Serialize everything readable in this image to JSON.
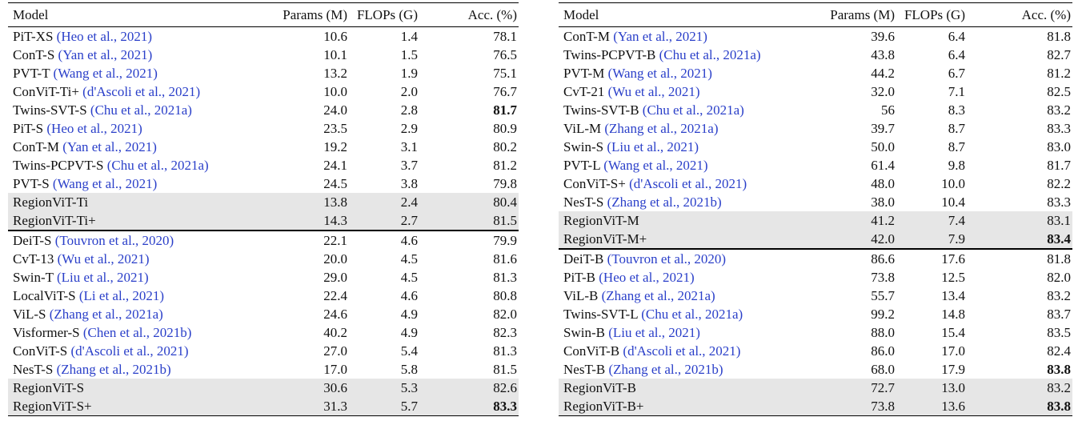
{
  "tables": [
    {
      "header": [
        "Model",
        "Params (M)",
        "FLOPs (G)",
        "Acc. (%)"
      ],
      "groups": [
        {
          "baselines": [
            {
              "model": "PiT-XS",
              "cite": "(Heo et al., 2021)",
              "params": "10.6",
              "flops": "1.4",
              "acc": "78.1"
            },
            {
              "model": "ConT-S",
              "cite": "(Yan et al., 2021)",
              "params": "10.1",
              "flops": "1.5",
              "acc": "76.5"
            },
            {
              "model": "PVT-T",
              "cite": "(Wang et al., 2021)",
              "params": "13.2",
              "flops": "1.9",
              "acc": "75.1"
            },
            {
              "model": "ConViT-Ti+",
              "cite": "(d'Ascoli et al., 2021)",
              "params": "10.0",
              "flops": "2.0",
              "acc": "76.7"
            },
            {
              "model": "Twins-SVT-S",
              "cite": "(Chu et al., 2021a)",
              "params": "24.0",
              "flops": "2.8",
              "acc": "81.7",
              "bold": true
            },
            {
              "model": "PiT-S",
              "cite": "(Heo et al., 2021)",
              "params": "23.5",
              "flops": "2.9",
              "acc": "80.9"
            },
            {
              "model": "ConT-M",
              "cite": "(Yan et al., 2021)",
              "params": "19.2",
              "flops": "3.1",
              "acc": "80.2"
            },
            {
              "model": "Twins-PCPVT-S",
              "cite": "(Chu et al., 2021a)",
              "params": "24.1",
              "flops": "3.7",
              "acc": "81.2"
            },
            {
              "model": "PVT-S",
              "cite": "(Wang et al., 2021)",
              "params": "24.5",
              "flops": "3.8",
              "acc": "79.8"
            }
          ],
          "ours": [
            {
              "model": "RegionViT-Ti",
              "params": "13.8",
              "flops": "2.4",
              "acc": "80.4"
            },
            {
              "model": "RegionViT-Ti+",
              "params": "14.3",
              "flops": "2.7",
              "acc": "81.5"
            }
          ]
        },
        {
          "baselines": [
            {
              "model": "DeiT-S",
              "cite": "(Touvron et al., 2020)",
              "params": "22.1",
              "flops": "4.6",
              "acc": "79.9"
            },
            {
              "model": "CvT-13",
              "cite": "(Wu et al., 2021)",
              "params": "20.0",
              "flops": "4.5",
              "acc": "81.6"
            },
            {
              "model": "Swin-T",
              "cite": "(Liu et al., 2021)",
              "params": "29.0",
              "flops": "4.5",
              "acc": "81.3"
            },
            {
              "model": "LocalViT-S",
              "cite": "(Li et al., 2021)",
              "params": "22.4",
              "flops": "4.6",
              "acc": "80.8"
            },
            {
              "model": "ViL-S",
              "cite": "(Zhang et al., 2021a)",
              "params": "24.6",
              "flops": "4.9",
              "acc": "82.0"
            },
            {
              "model": "Visformer-S",
              "cite": "(Chen et al., 2021b)",
              "params": "40.2",
              "flops": "4.9",
              "acc": "82.3"
            },
            {
              "model": "ConViT-S",
              "cite": "(d'Ascoli et al., 2021)",
              "params": "27.0",
              "flops": "5.4",
              "acc": "81.3"
            },
            {
              "model": "NesT-S",
              "cite": "(Zhang et al., 2021b)",
              "params": "17.0",
              "flops": "5.8",
              "acc": "81.5"
            }
          ],
          "ours": [
            {
              "model": "RegionViT-S",
              "params": "30.6",
              "flops": "5.3",
              "acc": "82.6"
            },
            {
              "model": "RegionViT-S+",
              "params": "31.3",
              "flops": "5.7",
              "acc": "83.3",
              "bold": true
            }
          ]
        }
      ]
    },
    {
      "header": [
        "Model",
        "Params (M)",
        "FLOPs (G)",
        "Acc. (%)"
      ],
      "groups": [
        {
          "baselines": [
            {
              "model": "ConT-M",
              "cite": "(Yan et al., 2021)",
              "params": "39.6",
              "flops": "6.4",
              "acc": "81.8"
            },
            {
              "model": "Twins-PCPVT-B",
              "cite": "(Chu et al., 2021a)",
              "params": "43.8",
              "flops": "6.4",
              "acc": "82.7"
            },
            {
              "model": "PVT-M",
              "cite": "(Wang et al., 2021)",
              "params": "44.2",
              "flops": "6.7",
              "acc": "81.2"
            },
            {
              "model": "CvT-21",
              "cite": "(Wu et al., 2021)",
              "params": "32.0",
              "flops": "7.1",
              "acc": "82.5"
            },
            {
              "model": "Twins-SVT-B",
              "cite": "(Chu et al., 2021a)",
              "params": "56",
              "flops": "8.3",
              "acc": "83.2"
            },
            {
              "model": "ViL-M",
              "cite": "(Zhang et al., 2021a)",
              "params": "39.7",
              "flops": "8.7",
              "acc": "83.3"
            },
            {
              "model": "Swin-S",
              "cite": "(Liu et al., 2021)",
              "params": "50.0",
              "flops": "8.7",
              "acc": "83.0"
            },
            {
              "model": "PVT-L",
              "cite": "(Wang et al., 2021)",
              "params": "61.4",
              "flops": "9.8",
              "acc": "81.7"
            },
            {
              "model": "ConViT-S+",
              "cite": "(d'Ascoli et al., 2021)",
              "params": "48.0",
              "flops": "10.0",
              "acc": "82.2"
            },
            {
              "model": "NesT-S",
              "cite": "(Zhang et al., 2021b)",
              "params": "38.0",
              "flops": "10.4",
              "acc": "83.3"
            }
          ],
          "ours": [
            {
              "model": "RegionViT-M",
              "params": "41.2",
              "flops": "7.4",
              "acc": "83.1"
            },
            {
              "model": "RegionViT-M+",
              "params": "42.0",
              "flops": "7.9",
              "acc": "83.4",
              "bold": true
            }
          ]
        },
        {
          "baselines": [
            {
              "model": "DeiT-B",
              "cite": "(Touvron et al., 2020)",
              "params": "86.6",
              "flops": "17.6",
              "acc": "81.8"
            },
            {
              "model": "PiT-B",
              "cite": "(Heo et al., 2021)",
              "params": "73.8",
              "flops": "12.5",
              "acc": "82.0"
            },
            {
              "model": "ViL-B",
              "cite": "(Zhang et al., 2021a)",
              "params": "55.7",
              "flops": "13.4",
              "acc": "83.2"
            },
            {
              "model": "Twins-SVT-L",
              "cite": "(Chu et al., 2021a)",
              "params": "99.2",
              "flops": "14.8",
              "acc": "83.7"
            },
            {
              "model": "Swin-B",
              "cite": "(Liu et al., 2021)",
              "params": "88.0",
              "flops": "15.4",
              "acc": "83.5"
            },
            {
              "model": "ConViT-B",
              "cite": "(d'Ascoli et al., 2021)",
              "params": "86.0",
              "flops": "17.0",
              "acc": "82.4"
            },
            {
              "model": "NesT-B",
              "cite": "(Zhang et al., 2021b)",
              "params": "68.0",
              "flops": "17.9",
              "acc": "83.8",
              "bold": true
            }
          ],
          "ours": [
            {
              "model": "RegionViT-B",
              "params": "72.7",
              "flops": "13.0",
              "acc": "83.2"
            },
            {
              "model": "RegionViT-B+",
              "params": "73.8",
              "flops": "13.6",
              "acc": "83.8",
              "bold": true
            }
          ]
        }
      ]
    }
  ]
}
